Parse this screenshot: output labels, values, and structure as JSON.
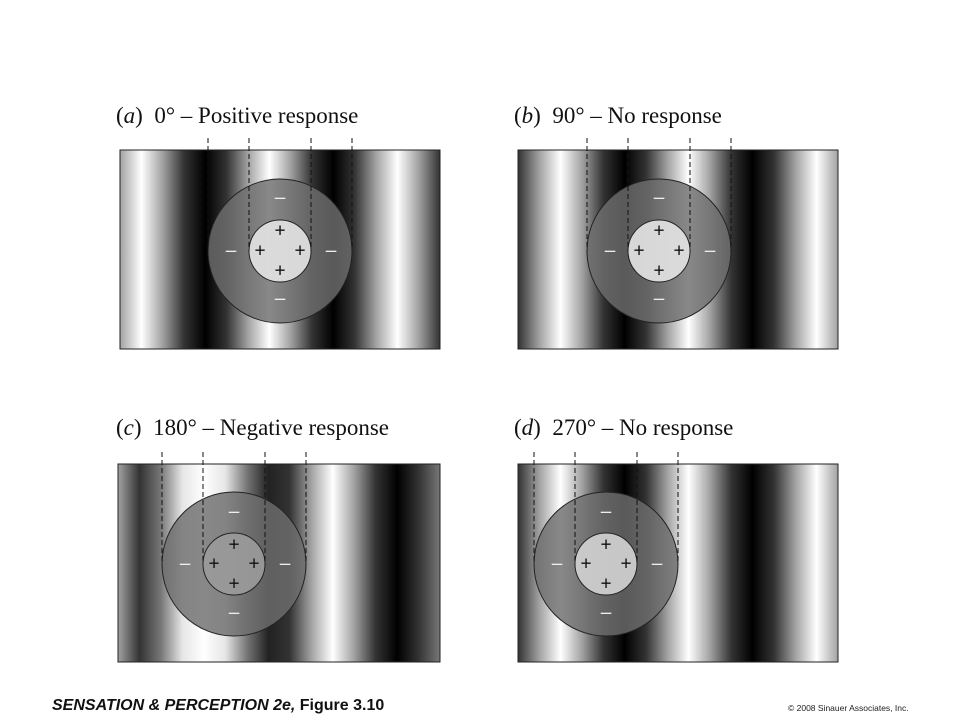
{
  "panels": [
    {
      "id": "a",
      "letter": "a",
      "caption": "0° – Positive response",
      "phase_deg": 0
    },
    {
      "id": "b",
      "letter": "b",
      "caption": "90° – No response",
      "phase_deg": 90
    },
    {
      "id": "c",
      "letter": "c",
      "caption": "180° – Negative response",
      "phase_deg": 180
    },
    {
      "id": "d",
      "letter": "d",
      "caption": "270° – No response",
      "phase_deg": 270
    }
  ],
  "symbols": {
    "center": "+",
    "surround": "–"
  },
  "footer": {
    "book": "SENSATION & PERCEPTION 2e,",
    "figure": "Figure 3.10",
    "copyright": "© 2008 Sinauer Associates, Inc."
  }
}
